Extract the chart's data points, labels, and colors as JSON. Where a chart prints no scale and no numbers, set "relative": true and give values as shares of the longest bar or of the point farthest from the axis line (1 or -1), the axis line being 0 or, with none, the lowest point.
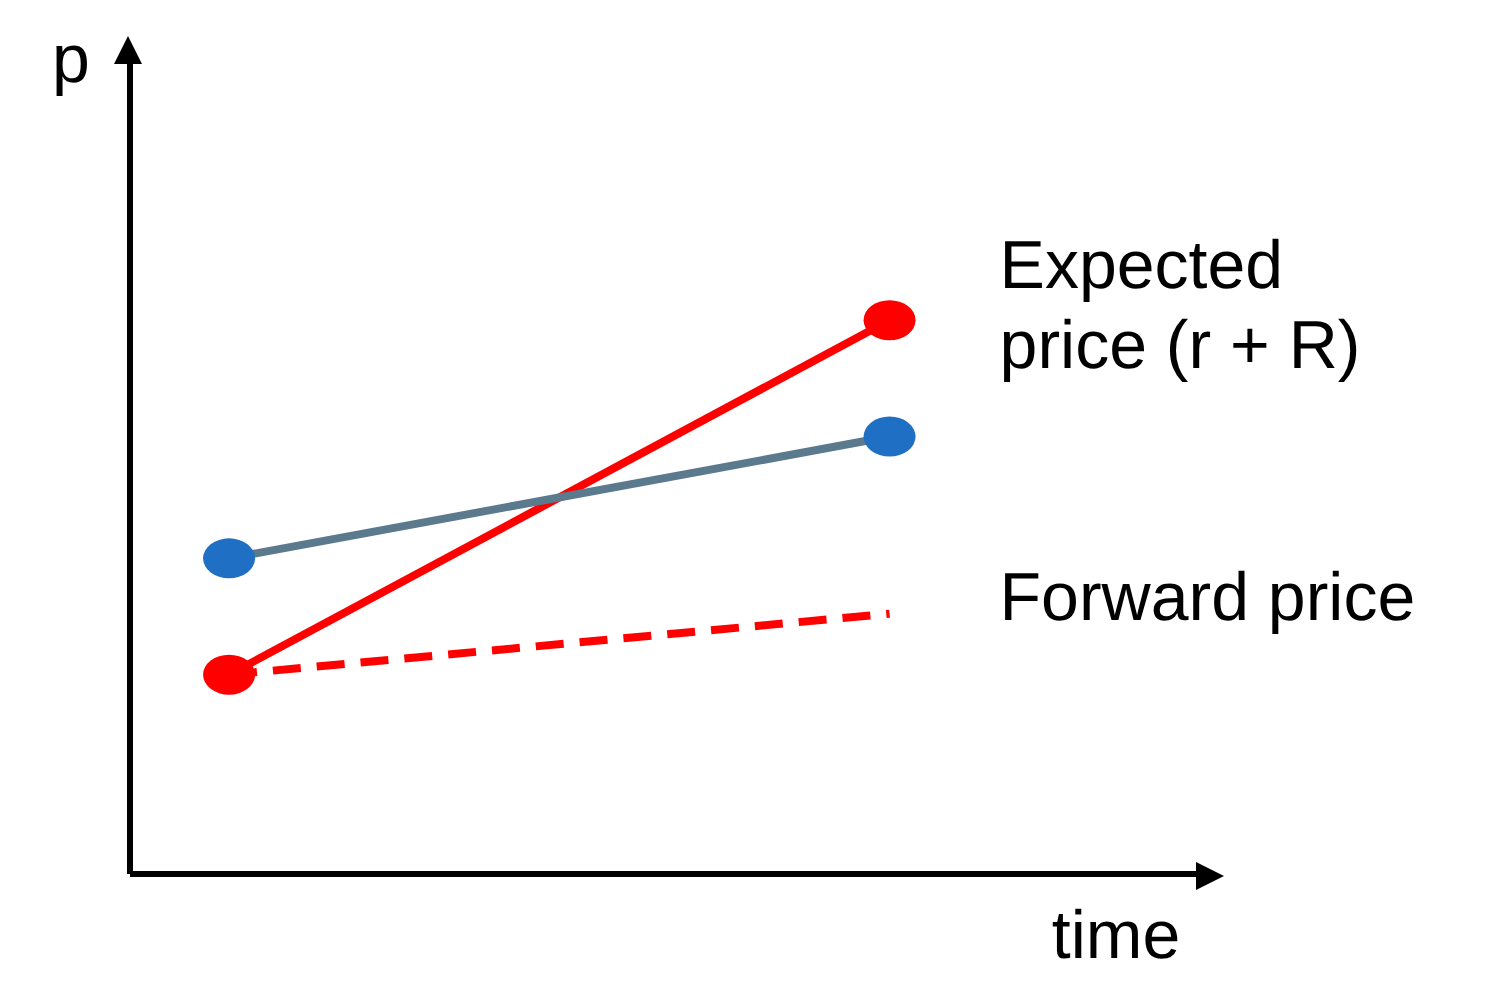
{
  "chart_data": {
    "type": "line",
    "xlabel": "time",
    "ylabel": "p",
    "relative": true,
    "categories": [
      null,
      null
    ],
    "marker": "circle",
    "line_style": "solid",
    "series": [
      {
        "name": "Expected price (r + R)",
        "color": "#ff0000",
        "values": [
          0.36,
          1
        ]
      },
      {
        "color": "#5b7a8e",
        "colors": [
          "#1f6fc5",
          "#1f6fc5"
        ],
        "values": [
          0.57,
          0.79
        ]
      },
      {
        "name": "Forward price",
        "color": "#ff0000",
        "values": [
          0.36,
          0.47
        ],
        "marker": "none",
        "line_style": "dashed"
      }
    ]
  }
}
